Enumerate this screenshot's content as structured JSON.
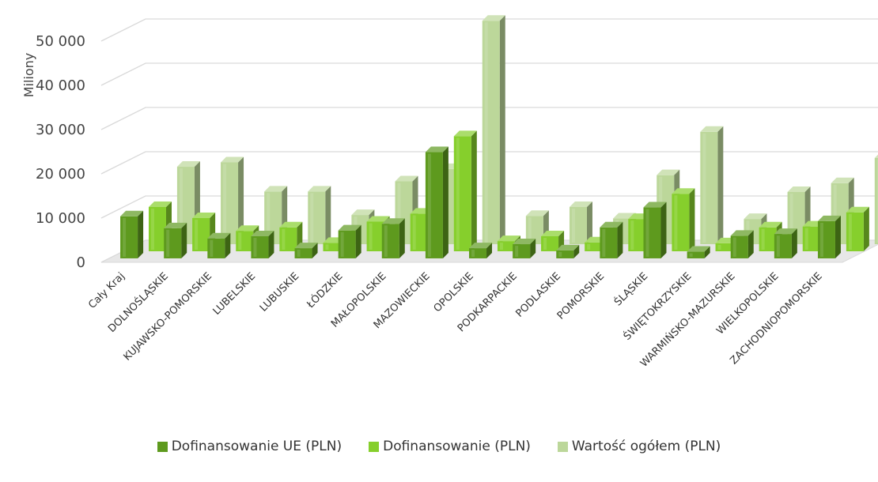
{
  "chart_data": {
    "type": "bar",
    "title": "",
    "ylabel": "Miliony",
    "xlabel": "",
    "ylim": [
      0,
      50000
    ],
    "y_ticks": [
      "0",
      "10 000",
      "20 000",
      "30 000",
      "40 000",
      "50 000"
    ],
    "grid": true,
    "legend_position": "bottom",
    "categories": [
      "Cały Kraj",
      "DOLNOŚLĄSKIE",
      "KUJAWSKO-POMORSKIE",
      "LUBELSKIE",
      "LUBUSKIE",
      "ŁÓDZKIE",
      "MAŁOPOLSKIE",
      "MAZOWIECKIE",
      "OPOLSKIE",
      "PODKARPACKIE",
      "PODLASKIE",
      "POMORSKIE",
      "ŚLĄSKIE",
      "ŚWIĘTOKRZYSKIE",
      "WARMIŃSKO-MAZURSKIE",
      "WIELKOPOLSKIE",
      "ZACHODNIOPOMORSKIE"
    ],
    "series": [
      {
        "name": "Dofinansowanie UE (PLN)",
        "color": "#5e9a1e",
        "values": [
          9500,
          6800,
          4500,
          5000,
          2300,
          6300,
          7800,
          24000,
          2300,
          3200,
          1800,
          7000,
          11500,
          1500,
          5100,
          5500,
          8400
        ]
      },
      {
        "name": "Dofinansowanie (PLN)",
        "color": "#86cf2c",
        "values": [
          10000,
          7500,
          4600,
          5400,
          1900,
          6700,
          8500,
          26000,
          2300,
          3400,
          2000,
          7300,
          13000,
          1800,
          5400,
          5600,
          8800
        ]
      },
      {
        "name": "Wartość ogółem (PLN)",
        "color": "#bcd79a",
        "values": [
          17500,
          18500,
          11900,
          11900,
          6600,
          14200,
          17000,
          50500,
          6400,
          8400,
          5800,
          15600,
          25400,
          5700,
          11800,
          13800,
          19500
        ]
      }
    ]
  }
}
